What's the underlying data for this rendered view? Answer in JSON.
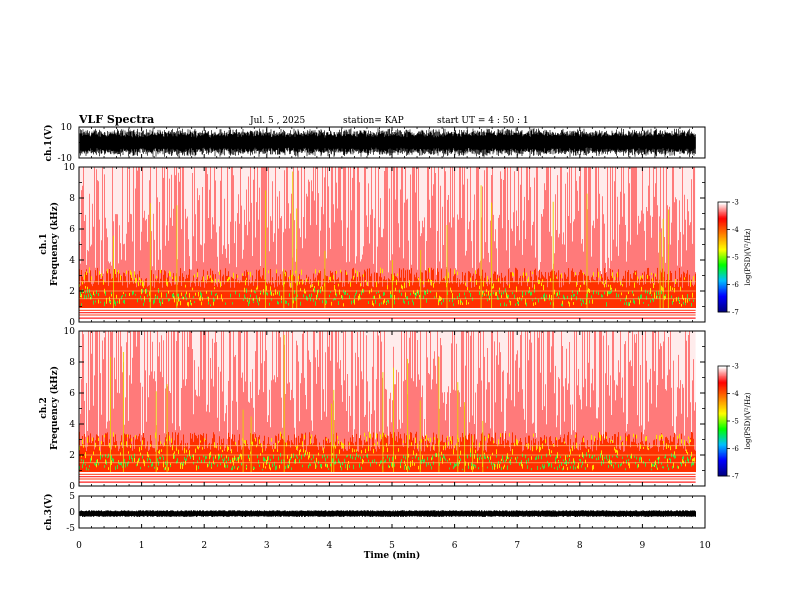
{
  "header": {
    "title": "VLF Spectra",
    "date": "Jul. 5 , 2025",
    "station": "station= KAP",
    "start_ut": "start UT = 4 : 50 : 1"
  },
  "chart_data": [
    {
      "type": "line",
      "name": "ch1-waveform",
      "ylabel": "ch.1(V)",
      "ylim": [
        -10,
        10
      ],
      "yticks": [
        "10",
        "-10"
      ],
      "xlim": [
        0,
        10
      ]
    },
    {
      "type": "heatmap",
      "name": "ch1-spectrogram",
      "ylabel_line1": "ch.1",
      "ylabel_line2": "Frequency (kHz)",
      "ylim": [
        0,
        10
      ],
      "yticks": [
        "0",
        "2",
        "4",
        "6",
        "8",
        "10"
      ],
      "xlim": [
        0,
        10
      ],
      "colorbar": {
        "label": "log(PSD)(V²/Hz)",
        "range": [
          -7,
          -3
        ],
        "ticks": [
          "-3",
          "-4",
          "-5",
          "-6",
          "-7"
        ],
        "colors": [
          "#000080",
          "#0000ff",
          "#00c0ff",
          "#00ff00",
          "#ffff00",
          "#ff8000",
          "#ff0000",
          "#ffffff"
        ]
      }
    },
    {
      "type": "heatmap",
      "name": "ch2-spectrogram",
      "ylabel_line1": "ch.2",
      "ylabel_line2": "Frequency (kHz)",
      "ylim": [
        0,
        10
      ],
      "yticks": [
        "0",
        "2",
        "4",
        "6",
        "8",
        "10"
      ],
      "xlim": [
        0,
        10
      ],
      "colorbar": {
        "label": "log(PSD)(V²/Hz)",
        "range": [
          -7,
          -3
        ],
        "ticks": [
          "-3",
          "-4",
          "-5",
          "-6",
          "-7"
        ],
        "colors": [
          "#000080",
          "#0000ff",
          "#00c0ff",
          "#00ff00",
          "#ffff00",
          "#ff8000",
          "#ff0000",
          "#ffffff"
        ]
      }
    },
    {
      "type": "line",
      "name": "ch3-waveform",
      "ylabel": "ch.3(V)",
      "ylim": [
        -5,
        5
      ],
      "yticks": [
        "5",
        "0",
        "-5"
      ],
      "xlim": [
        0,
        10
      ],
      "xlabel": "Time (min)",
      "xticks": [
        "0",
        "1",
        "2",
        "3",
        "4",
        "5",
        "6",
        "7",
        "8",
        "9",
        "10"
      ]
    }
  ]
}
